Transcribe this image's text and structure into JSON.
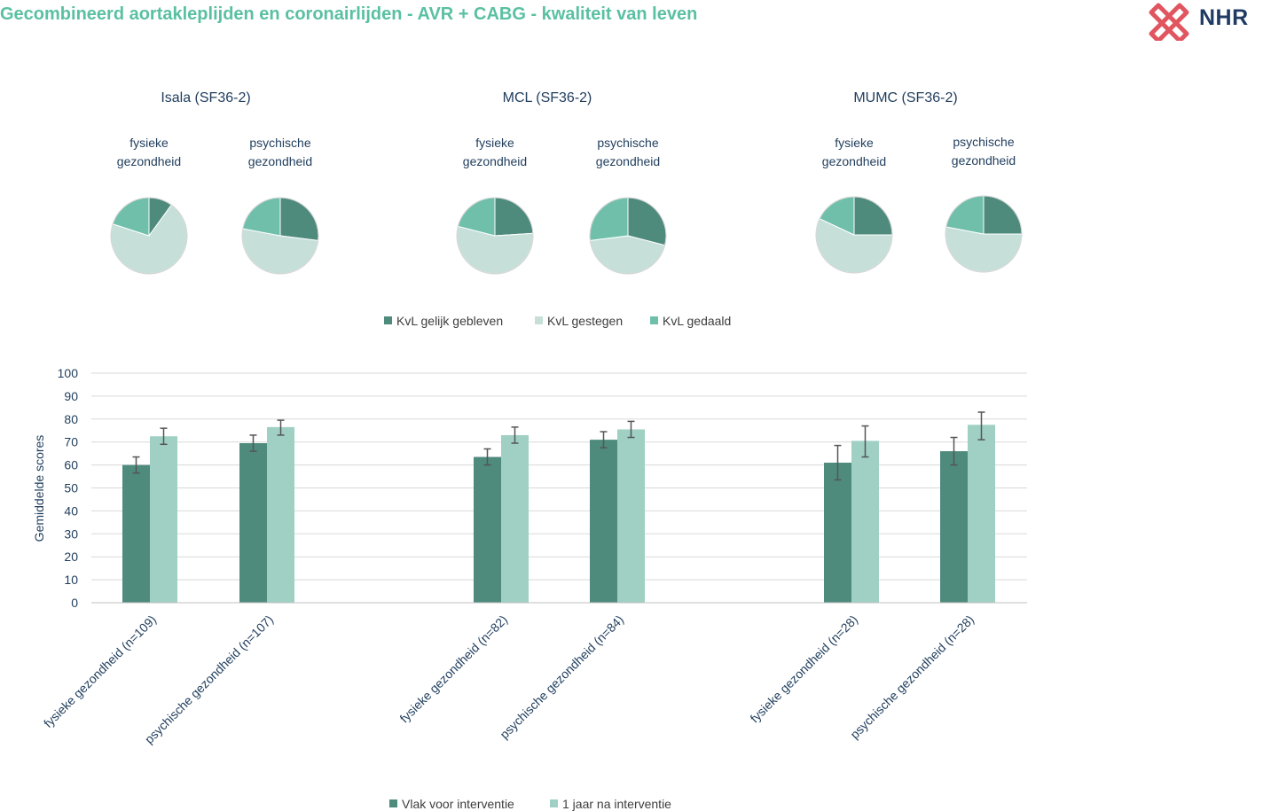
{
  "header": {
    "title": "Gecombineerd aortakleplijden en coronairlijden - AVR + CABG - kwaliteit van leven",
    "logo_text": "NHR"
  },
  "colors": {
    "title": "#5ac0a2",
    "text": "#1f3d5c",
    "gelijk": "#4e8b7d",
    "gestegen": "#c6e0d9",
    "gedaald": "#6fbfab",
    "bar_voor": "#4e8b7d",
    "bar_na": "#9fd0c3",
    "logo_red": "#e0555f",
    "logo_blue": "#1f3b63"
  },
  "chart_data": [
    {
      "type": "pie",
      "title": "Isala (SF36-2)",
      "legend": [
        "KvL gelijk gebleven",
        "KvL gestegen",
        "KvL gedaald"
      ],
      "legend_position": "bottom",
      "pies": [
        {
          "label": "fysieke gezondheid",
          "values": [
            10,
            70,
            20
          ]
        },
        {
          "label": "psychische gezondheid",
          "values": [
            27,
            51,
            22
          ]
        }
      ]
    },
    {
      "type": "pie",
      "title": "MCL (SF36-2)",
      "legend": [
        "KvL gelijk gebleven",
        "KvL gestegen",
        "KvL gedaald"
      ],
      "legend_position": "bottom",
      "pies": [
        {
          "label": "fysieke gezondheid",
          "values": [
            24,
            55,
            21
          ]
        },
        {
          "label": "psychische gezondheid",
          "values": [
            29,
            44,
            27
          ]
        }
      ]
    },
    {
      "type": "pie",
      "title": "MUMC (SF36-2)",
      "legend": [
        "KvL gelijk gebleven",
        "KvL gestegen",
        "KvL gedaald"
      ],
      "legend_position": "bottom",
      "pies": [
        {
          "label": "fysieke gezondheid",
          "values": [
            25,
            57,
            18
          ]
        },
        {
          "label": "psychische gezondheid",
          "values": [
            25,
            53,
            22
          ]
        }
      ]
    },
    {
      "type": "bar",
      "title": "",
      "ylabel": "Gemiddelde scores",
      "xlabel": "",
      "ylim": [
        0,
        100
      ],
      "yticks": [
        0,
        10,
        20,
        30,
        40,
        50,
        60,
        70,
        80,
        90,
        100
      ],
      "grid": true,
      "legend_position": "bottom",
      "categories": [
        "fysieke gezondheid (n=109)",
        "psychische gezondheid (n=107)",
        "fysieke gezondheid (n=82)",
        "psychische gezondheid (n=84)",
        "fysieke gezondheid (n=28)",
        "psychische gezondheid (n=28)"
      ],
      "series": [
        {
          "name": "Vlak voor interventie",
          "values": [
            60,
            69.5,
            63.5,
            71,
            61,
            66
          ],
          "error": [
            [
              56.5,
              63.5
            ],
            [
              66,
              73
            ],
            [
              60,
              67
            ],
            [
              67.5,
              74.5
            ],
            [
              53.5,
              68.5
            ],
            [
              60,
              72
            ]
          ]
        },
        {
          "name": "1 jaar na interventie",
          "values": [
            72.5,
            76.5,
            73,
            75.5,
            70.5,
            77.5
          ],
          "error": [
            [
              69,
              76
            ],
            [
              73,
              79.5
            ],
            [
              69.5,
              76.5
            ],
            [
              72,
              79
            ],
            [
              63.5,
              77
            ],
            [
              71,
              83
            ]
          ]
        }
      ]
    }
  ]
}
